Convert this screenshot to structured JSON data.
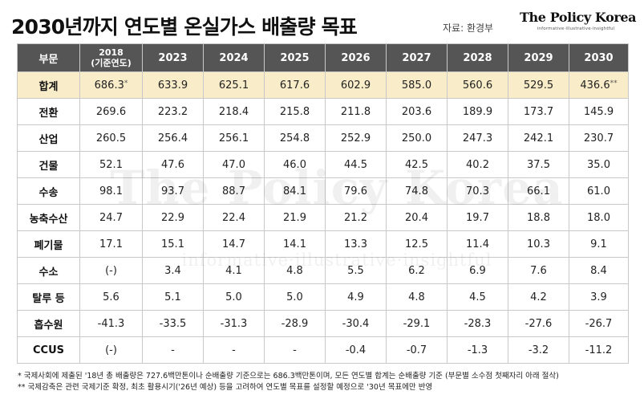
{
  "header": {
    "title": "2030년까지 연도별 온실가스 배출량 목표",
    "source": "자료: 환경부",
    "brand_name": "The Policy Korea",
    "brand_tagline": "informative·illustrative·insightful"
  },
  "watermark": {
    "name": "The Policy Korea",
    "tagline": "informative·illustrative·insightful"
  },
  "table": {
    "header": {
      "sector": "부문",
      "base_year_line1": "2018",
      "base_year_line2": "(기준연도)",
      "years": [
        "2023",
        "2024",
        "2025",
        "2026",
        "2027",
        "2028",
        "2029",
        "2030"
      ]
    },
    "rows": [
      {
        "label": "합계",
        "values": [
          "686.3",
          "633.9",
          "625.1",
          "617.6",
          "602.9",
          "585.0",
          "560.6",
          "529.5",
          "436.6"
        ],
        "first_mark": "*",
        "last_mark": "**"
      },
      {
        "label": "전환",
        "values": [
          "269.6",
          "223.2",
          "218.4",
          "215.8",
          "211.8",
          "203.6",
          "189.9",
          "173.7",
          "145.9"
        ]
      },
      {
        "label": "산업",
        "values": [
          "260.5",
          "256.4",
          "256.1",
          "254.8",
          "252.9",
          "250.0",
          "247.3",
          "242.1",
          "230.7"
        ]
      },
      {
        "label": "건물",
        "values": [
          "52.1",
          "47.6",
          "47.0",
          "46.0",
          "44.5",
          "42.5",
          "40.2",
          "37.5",
          "35.0"
        ]
      },
      {
        "label": "수송",
        "values": [
          "98.1",
          "93.7",
          "88.7",
          "84.1",
          "79.6",
          "74.8",
          "70.3",
          "66.1",
          "61.0"
        ]
      },
      {
        "label": "농축수산",
        "values": [
          "24.7",
          "22.9",
          "22.4",
          "21.9",
          "21.2",
          "20.4",
          "19.7",
          "18.8",
          "18.0"
        ]
      },
      {
        "label": "폐기물",
        "values": [
          "17.1",
          "15.1",
          "14.7",
          "14.1",
          "13.3",
          "12.5",
          "11.4",
          "10.3",
          "9.1"
        ]
      },
      {
        "label": "수소",
        "values": [
          "(-)",
          "3.4",
          "4.1",
          "4.8",
          "5.5",
          "6.2",
          "6.9",
          "7.6",
          "8.4"
        ]
      },
      {
        "label": "탈루 등",
        "values": [
          "5.6",
          "5.1",
          "5.0",
          "5.0",
          "4.9",
          "4.8",
          "4.5",
          "4.2",
          "3.9"
        ]
      },
      {
        "label": "흡수원",
        "values": [
          "-41.3",
          "-33.5",
          "-31.3",
          "-28.9",
          "-30.4",
          "-29.1",
          "-28.3",
          "-27.6",
          "-26.7"
        ]
      },
      {
        "label": "CCUS",
        "values": [
          "(-)",
          "-",
          "-",
          "-",
          "-0.4",
          "-0.7",
          "-1.3",
          "-3.2",
          "-11.2"
        ]
      }
    ]
  },
  "notes": [
    "* 국제사회에 제출된 '18년 총 배출량은 727.6백만톤이나 순배출량 기준으로는 686.3백만톤이며, 모든 연도별 합계는 순배출량 기준 (부문별 소수점 첫째자리 아래 절삭)",
    "** 국제감축은 관련 국제기준 확정, 최초 활용시기('26년 예상) 등을 고려하여 연도별 목표를 설정할 예정으로 '30년 목표에만 반영"
  ],
  "colors": {
    "header_bg": "#555555",
    "total_row_bg": "#f9ecc8",
    "grid_line": "#c8c8c8"
  }
}
